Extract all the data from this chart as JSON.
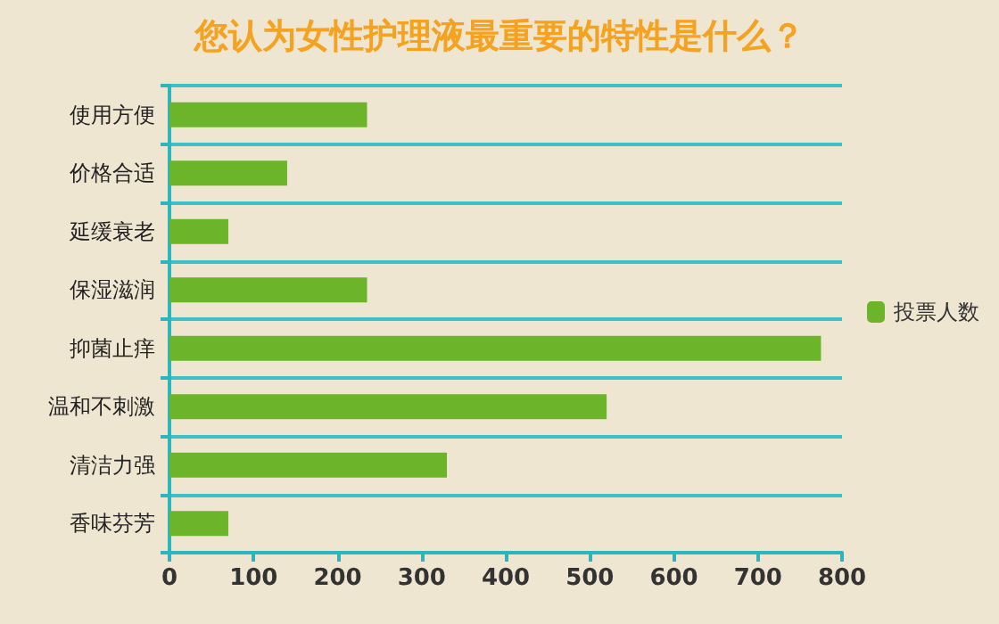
{
  "chart_data": {
    "type": "bar",
    "orientation": "horizontal",
    "title": "您认为女性护理液最重要的特性是什么？",
    "categories": [
      "使用方便",
      "价格合适",
      "延缓衰老",
      "保湿滋润",
      "抑菌止痒",
      "温和不刺激",
      "清洁力强",
      "香味芬芳"
    ],
    "series": [
      {
        "name": "投票人数",
        "color": "#6cb52a",
        "values": [
          235,
          140,
          70,
          235,
          775,
          520,
          330,
          70
        ]
      }
    ],
    "xlim": [
      0,
      800
    ],
    "xticks": [
      0,
      100,
      200,
      300,
      400,
      500,
      600,
      700,
      800
    ],
    "grid": "y",
    "legend": "right"
  }
}
